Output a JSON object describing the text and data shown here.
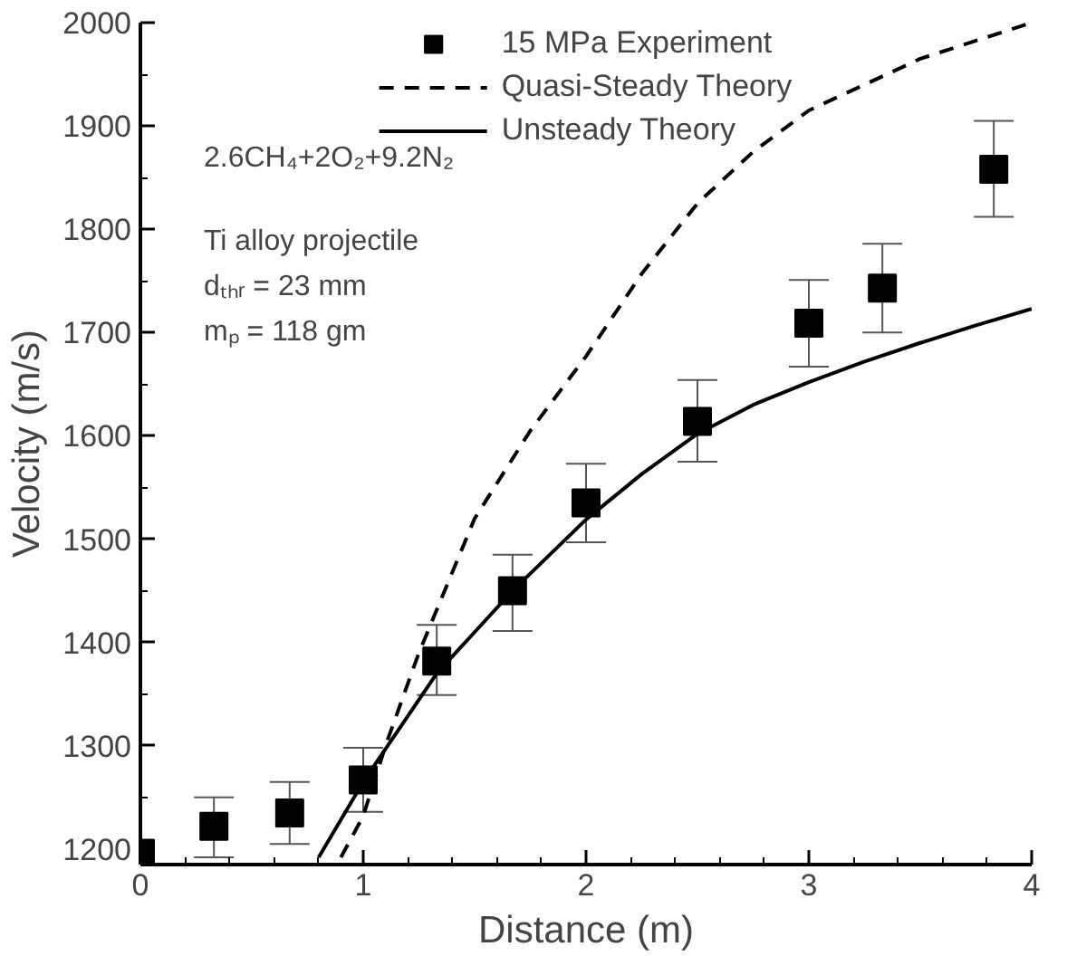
{
  "chart_data": {
    "type": "scatter",
    "xlabel": "Distance (m)",
    "ylabel": "Velocity (m/s)",
    "xlim": [
      0,
      4
    ],
    "ylim": [
      1185,
      2000
    ],
    "xticks": [
      0,
      1,
      2,
      3,
      4
    ],
    "yticks": [
      1200,
      1300,
      1400,
      1500,
      1600,
      1700,
      1800,
      1900,
      2000
    ],
    "grid": false,
    "legend": "top",
    "series": [
      {
        "name": "15 MPa Experiment",
        "marker": "square",
        "color": "#000000",
        "x": [
          0,
          0.33,
          0.67,
          1,
          1.33,
          1.67,
          2,
          2.5,
          3,
          3.33,
          3.83
        ],
        "values": [
          1196,
          1222,
          1235,
          1267,
          1382,
          1450,
          1535,
          1614,
          1709,
          1743,
          1858
        ],
        "errors": [
          null,
          [
            1192,
            1250
          ],
          [
            1205,
            1265
          ],
          [
            1236,
            1298
          ],
          [
            1349,
            1417
          ],
          [
            1411,
            1485
          ],
          [
            1497,
            1573
          ],
          [
            1575,
            1654
          ],
          [
            1667,
            1751
          ],
          [
            1700,
            1786
          ],
          [
            1812,
            1905
          ]
        ]
      },
      {
        "name": "Quasi-Steady Theory",
        "type": "line",
        "line_style": "dashed",
        "color": "#000000",
        "x": [
          0.9,
          1,
          1.1,
          1.25,
          1.5,
          1.75,
          2,
          2.25,
          2.5,
          2.75,
          3,
          3.5,
          4
        ],
        "values": [
          1192,
          1232,
          1300,
          1390,
          1520,
          1605,
          1677,
          1757,
          1825,
          1875,
          1915,
          1965,
          2000
        ]
      },
      {
        "name": "Unsteady Theory",
        "type": "line",
        "line_style": "solid",
        "color": "#000000",
        "x": [
          0.8,
          1,
          1.33,
          1.5,
          1.67,
          2,
          2.25,
          2.5,
          2.75,
          3,
          3.25,
          3.5,
          3.75,
          4
        ],
        "values": [
          1192,
          1265,
          1370,
          1410,
          1450,
          1519,
          1563,
          1602,
          1630,
          1652,
          1672,
          1690,
          1707,
          1723
        ]
      }
    ],
    "annotations": [
      "2.6CH₄+2O₂+9.2N₂",
      "Ti alloy projectile",
      "dₜₕᵣ = 23 mm",
      "mₚ = 118 gm"
    ]
  }
}
